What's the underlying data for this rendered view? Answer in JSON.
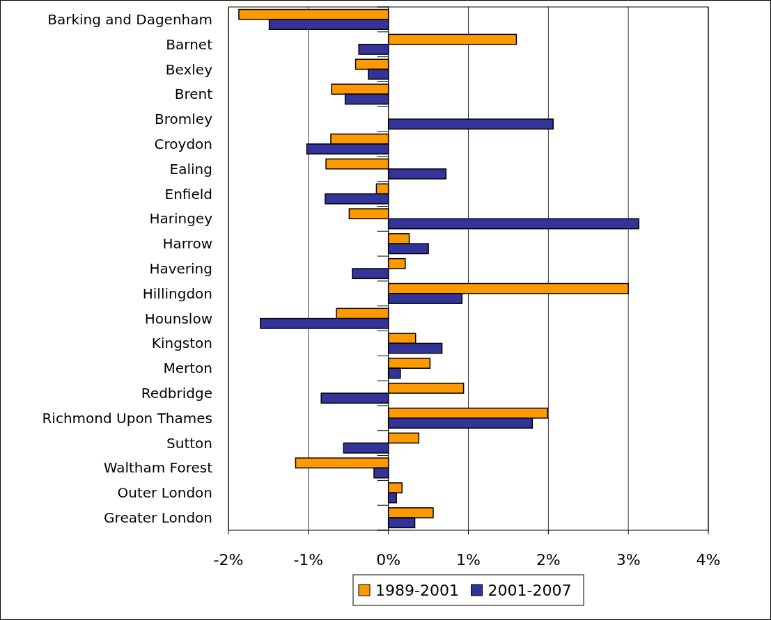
{
  "chart_data": {
    "type": "bar",
    "orientation": "horizontal",
    "categories": [
      "Barking and Dagenham",
      "Barnet",
      "Bexley",
      "Brent",
      "Bromley",
      "Croydon",
      "Ealing",
      "Enfield",
      "Haringey",
      "Harrow",
      "Havering",
      "Hillingdon",
      "Hounslow",
      "Kingston",
      "Merton",
      "Redbridge",
      "Richmond Upon Thames",
      "Sutton",
      "Waltham Forest",
      "Outer London",
      "Greater London"
    ],
    "series": [
      {
        "name": "1989-2001",
        "color": "#ff9900",
        "values": [
          -1.87,
          1.6,
          -0.41,
          -0.71,
          0,
          -0.72,
          -0.78,
          -0.15,
          -0.49,
          0.26,
          0.21,
          3.0,
          -0.65,
          0.34,
          0.52,
          0.94,
          1.99,
          0.38,
          -1.16,
          0.17,
          0.56
        ]
      },
      {
        "name": "2001-2007",
        "color": "#333399",
        "values": [
          -1.49,
          -0.37,
          -0.25,
          -0.54,
          2.06,
          -1.02,
          0.72,
          -0.79,
          3.13,
          0.5,
          -0.45,
          0.92,
          -1.6,
          0.67,
          0.15,
          -0.84,
          1.8,
          -0.56,
          -0.18,
          0.1,
          0.33
        ]
      }
    ],
    "xlim": [
      -2,
      4
    ],
    "xticks": [
      {
        "value": -2,
        "label": "-2%"
      },
      {
        "value": -1,
        "label": "-1%"
      },
      {
        "value": 0,
        "label": "0%"
      },
      {
        "value": 1,
        "label": "1%"
      },
      {
        "value": 2,
        "label": "2%"
      },
      {
        "value": 3,
        "label": "3%"
      },
      {
        "value": 4,
        "label": "4%"
      }
    ],
    "grid": "x",
    "legend": "bottom"
  }
}
